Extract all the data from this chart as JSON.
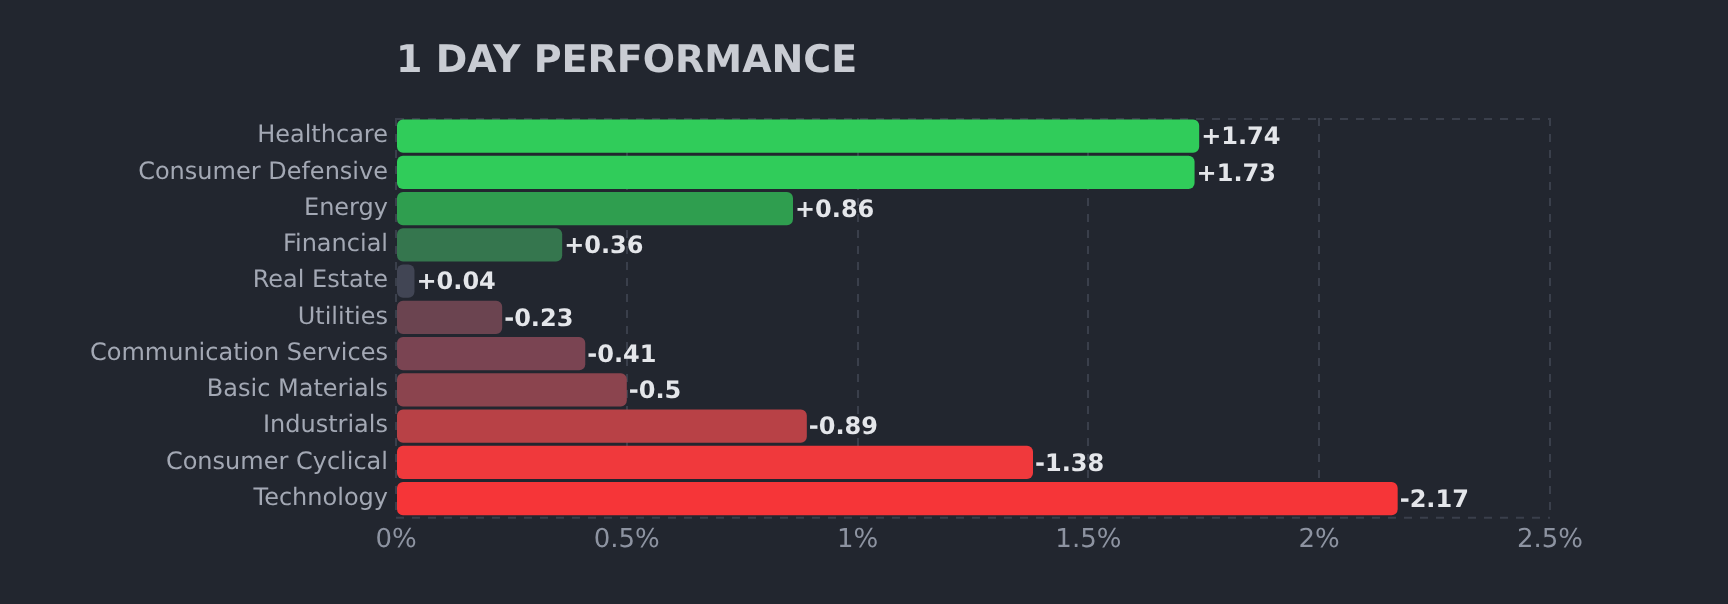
{
  "chart_data": {
    "type": "bar",
    "orientation": "horizontal",
    "title": "1 DAY PERFORMANCE",
    "categories": [
      "Healthcare",
      "Consumer Defensive",
      "Energy",
      "Financial",
      "Real Estate",
      "Utilities",
      "Communication Services",
      "Basic Materials",
      "Industrials",
      "Consumer Cyclical",
      "Technology"
    ],
    "values": [
      1.74,
      1.73,
      0.86,
      0.36,
      0.04,
      -0.23,
      -0.41,
      -0.5,
      -0.89,
      -1.38,
      -2.17
    ],
    "base": [
      0,
      0,
      0,
      0,
      0,
      0.23,
      0.41,
      0.5,
      0.89,
      1.38,
      2.17
    ],
    "value_labels": [
      "+1.74",
      "+1.73",
      "+0.86",
      "+0.36",
      "+0.04",
      "-0.23",
      "-0.41",
      "-0.5",
      "-0.89",
      "-1.38",
      "-2.17"
    ],
    "colors": [
      "#30cc5a",
      "#30cc5a",
      "#2f9e4f",
      "#35764e",
      "#414554",
      "#6b4450",
      "#7a4452",
      "#8b444e",
      "#b84146",
      "#f0393c",
      "#f63538"
    ],
    "xlim": [
      0,
      2.5
    ],
    "xticks": [
      {
        "value": 0,
        "label": "0%"
      },
      {
        "value": 0.5,
        "label": "0.5%"
      },
      {
        "value": 1,
        "label": "1%"
      },
      {
        "value": 1.5,
        "label": "1.5%"
      },
      {
        "value": 2,
        "label": "2%"
      },
      {
        "value": 2.5,
        "label": "2.5%"
      }
    ],
    "grid": "x"
  }
}
